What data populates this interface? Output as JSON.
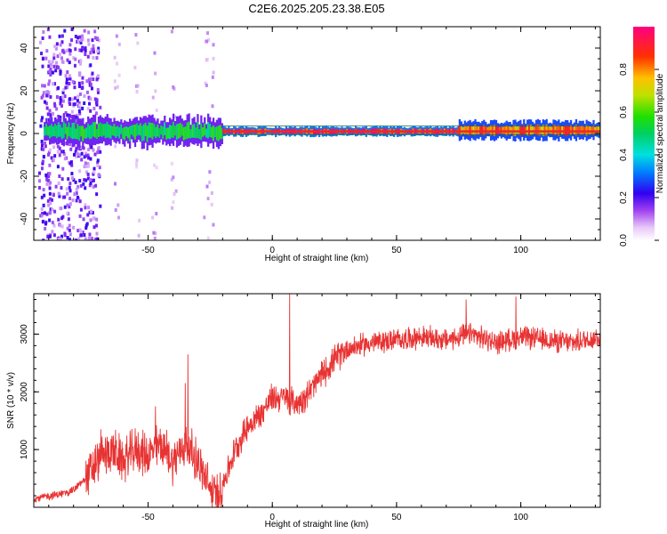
{
  "title": "C2E6.2025.205.23.38.E05",
  "chart_data": [
    {
      "type": "heatmap",
      "xlabel": "Height of straight line (km)",
      "ylabel": "Frequency (Hz)",
      "xlim": [
        -96,
        132
      ],
      "ylim": [
        -50,
        50
      ],
      "xticks": [
        -50,
        0,
        50,
        100
      ],
      "yticks": [
        -40,
        -20,
        0,
        20,
        40
      ],
      "colorbar": {
        "label": "Normalized spectral amplitude",
        "range": [
          0,
          1
        ],
        "ticks": [
          0.0,
          0.2,
          0.4,
          0.6,
          0.8
        ],
        "tick_labels": [
          "0.0",
          "0.2",
          "0.4",
          "0.6",
          "0.8"
        ]
      },
      "grid": false,
      "bands": [
        {
          "x_from": -92,
          "x_to": -72,
          "note": "broadband scatter",
          "level": 0.15
        },
        {
          "x_from": -92,
          "x_to": -20,
          "freq_center": 1,
          "freq_halfwidth": 3,
          "level": 0.55
        },
        {
          "x_from": -20,
          "x_to": 75,
          "freq_center": 1,
          "freq_halfwidth": 1,
          "level": 0.95
        },
        {
          "x_from": 75,
          "x_to": 132,
          "freq_center": 1.5,
          "freq_halfwidth": 2,
          "level": 0.85
        }
      ],
      "scatter_columns": [
        -92,
        -88,
        -84,
        -80,
        -76,
        -72,
        -63,
        -55,
        -48,
        -40,
        -27,
        -25
      ],
      "color": "#e8292d"
    },
    {
      "type": "line",
      "xlabel": "Height of straight line (km)",
      "ylabel": "SNR (10 * v/v)",
      "xlim": [
        -96,
        132
      ],
      "ylim": [
        0,
        3700
      ],
      "xticks": [
        -50,
        0,
        50,
        100
      ],
      "yticks": [
        1000,
        2000,
        3000
      ],
      "grid": false,
      "series": [
        {
          "color": "#e83333",
          "x": [
            -96,
            -85,
            -80,
            -75,
            -70,
            -65,
            -60,
            -55,
            -50,
            -45,
            -40,
            -35,
            -30,
            -25,
            -22,
            -19,
            -15,
            -10,
            -5,
            0,
            5,
            10,
            15,
            20,
            25,
            30,
            40,
            50,
            60,
            70,
            80,
            90,
            100,
            110,
            120,
            132
          ],
          "y": [
            150,
            230,
            300,
            500,
            800,
            1000,
            800,
            1000,
            900,
            1100,
            800,
            1100,
            800,
            300,
            200,
            500,
            1000,
            1400,
            1600,
            1900,
            1900,
            1800,
            2000,
            2300,
            2550,
            2750,
            2850,
            2900,
            2950,
            2900,
            3000,
            2850,
            2950,
            2900,
            2850,
            2950
          ],
          "peaks": [
            {
              "x": 7,
              "y": 3700
            },
            {
              "x": -34,
              "y": 2650
            },
            {
              "x": -35,
              "y": 2150
            },
            {
              "x": -47,
              "y": 1750
            },
            {
              "x": -69,
              "y": 1350
            },
            {
              "x": 78,
              "y": 3600
            },
            {
              "x": 98,
              "y": 3650
            }
          ]
        }
      ]
    }
  ]
}
